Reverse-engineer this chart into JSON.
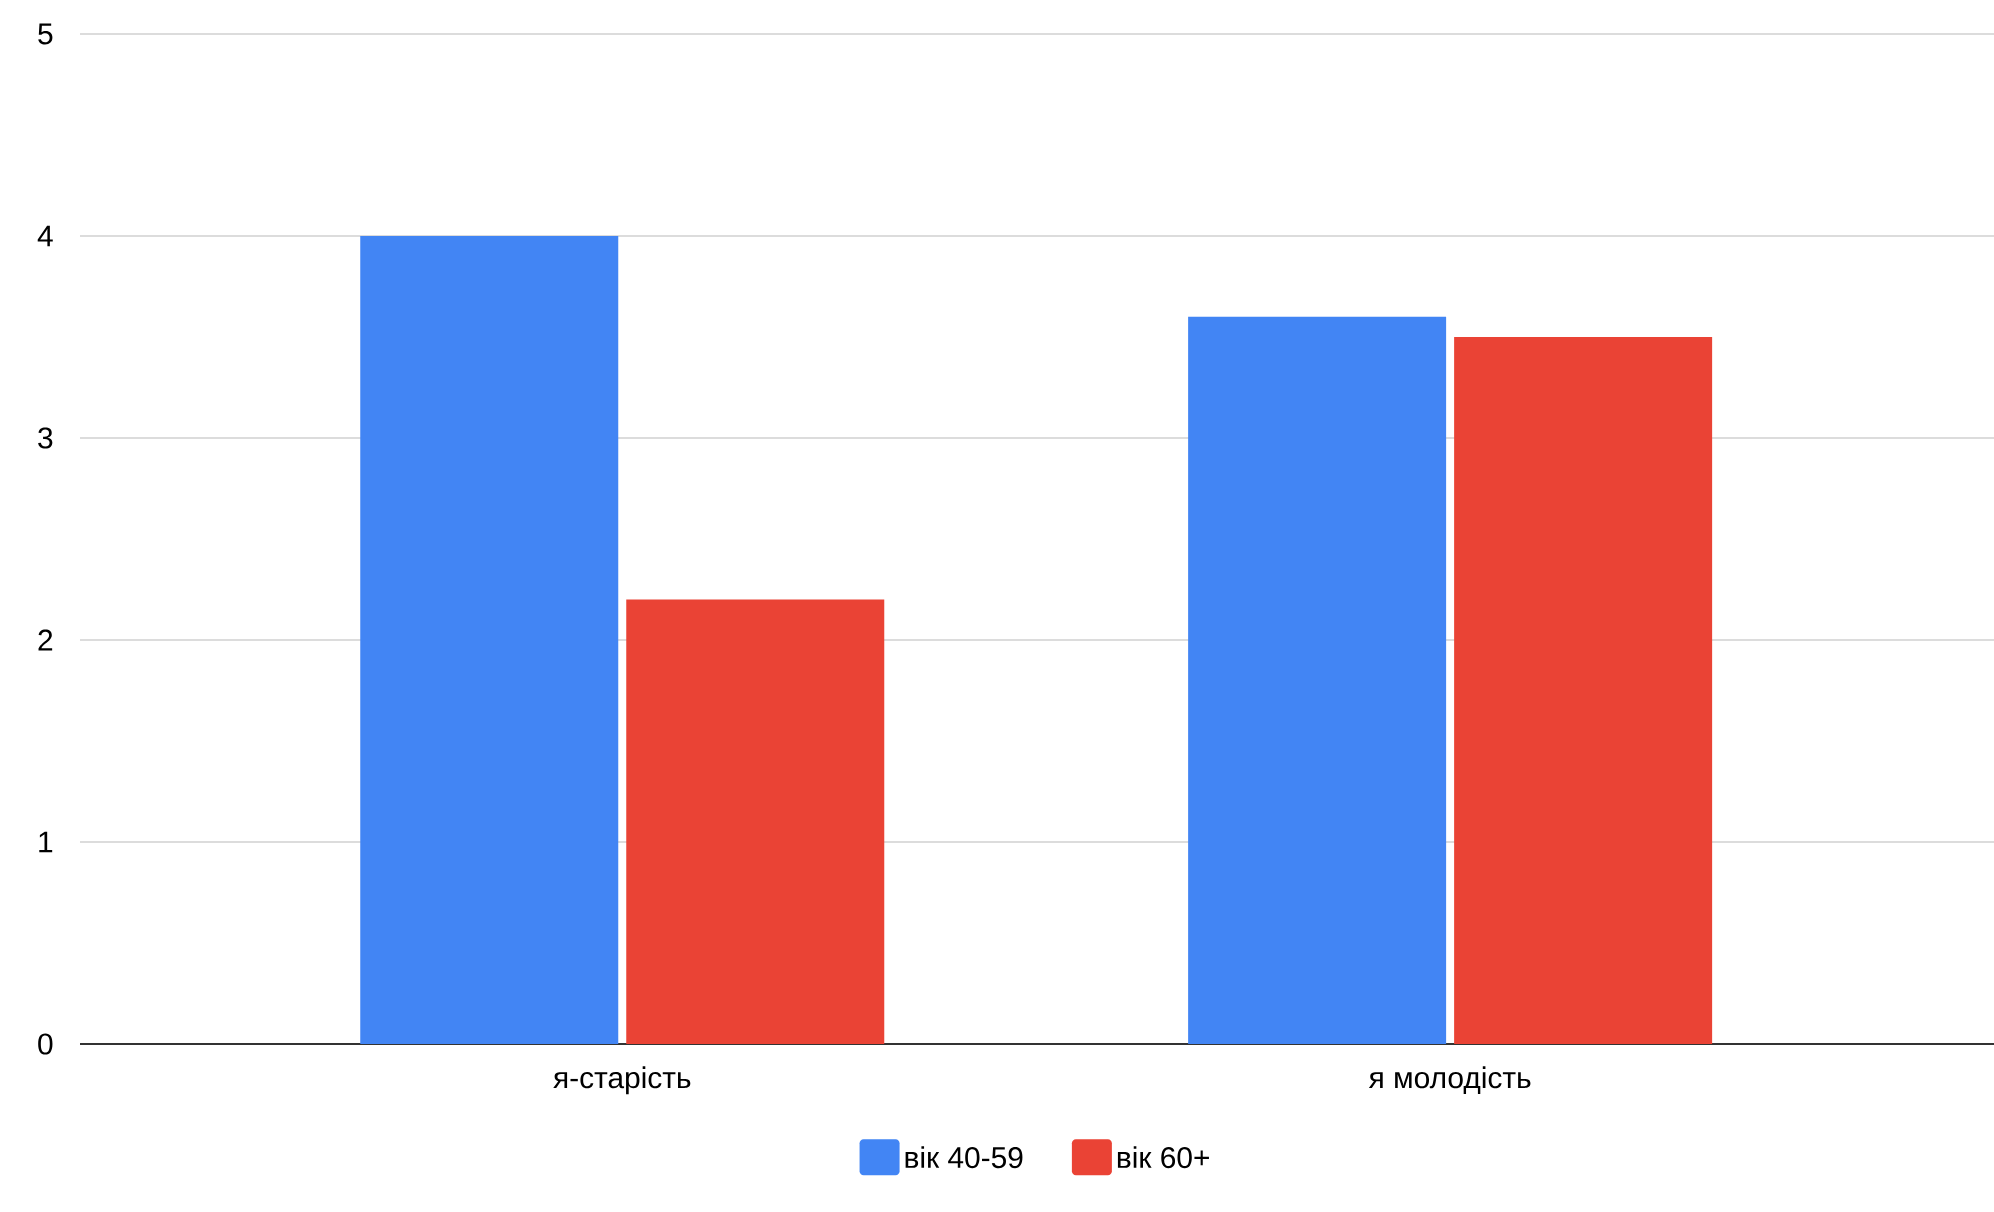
{
  "chart_data": {
    "type": "bar",
    "categories": [
      "я-старість",
      "я молодість"
    ],
    "series": [
      {
        "name": "вік 40-59",
        "color": "#4285f4",
        "values": [
          4,
          3.6
        ]
      },
      {
        "name": "вік 60+",
        "color": "#ea4335",
        "values": [
          2.2,
          3.5
        ]
      }
    ],
    "ylim": [
      0,
      5
    ],
    "yticks": [
      0,
      1,
      2,
      3,
      4,
      5
    ],
    "grid": "y",
    "legend": "bottom"
  }
}
